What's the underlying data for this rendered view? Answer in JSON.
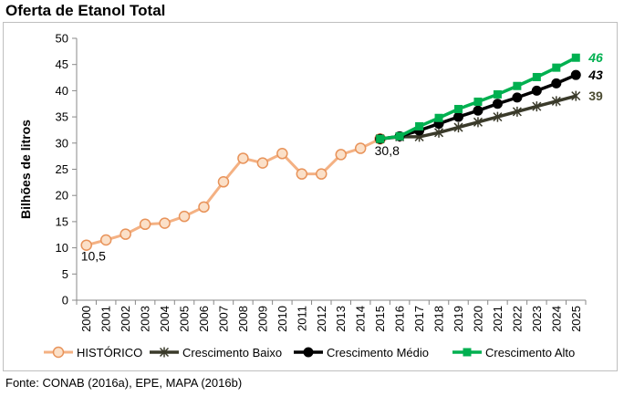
{
  "title": "Oferta de Etanol Total",
  "source": "Fonte: CONAB (2016a), EPE, MAPA (2016b)",
  "chart_data": {
    "type": "line",
    "ylabel": "Bilhões de litros",
    "xlabel": "",
    "ylim": [
      0,
      50
    ],
    "yticks": [
      0,
      5,
      10,
      15,
      20,
      25,
      30,
      35,
      40,
      45,
      50
    ],
    "grid": false,
    "legend_position": "bottom",
    "x": [
      "2000",
      "2001",
      "2002",
      "2003",
      "2004",
      "2005",
      "2006",
      "2007",
      "2008",
      "2009",
      "2010",
      "2011",
      "2012",
      "2013",
      "2014",
      "2015",
      "2016",
      "2017",
      "2018",
      "2019",
      "2020",
      "2021",
      "2022",
      "2023",
      "2024",
      "2025"
    ],
    "series": [
      {
        "name": "HISTÓRICO",
        "color": "#f4b183",
        "marker": "circle",
        "values": [
          10.5,
          11.5,
          12.6,
          14.5,
          14.7,
          16.0,
          17.8,
          22.6,
          27.1,
          26.2,
          28.0,
          24.1,
          24.1,
          27.8,
          29.0,
          30.8,
          null,
          null,
          null,
          null,
          null,
          null,
          null,
          null,
          null,
          null
        ]
      },
      {
        "name": "Crescimento Baixo",
        "color": "#3a3a2a",
        "marker": "star",
        "values": [
          null,
          null,
          null,
          null,
          null,
          null,
          null,
          null,
          null,
          null,
          null,
          null,
          null,
          null,
          null,
          30.8,
          31.2,
          31.2,
          32.0,
          33.0,
          34.0,
          35.0,
          36.0,
          37.0,
          38.0,
          39.0
        ]
      },
      {
        "name": "Crescimento Médio",
        "color": "#000000",
        "marker": "dot",
        "values": [
          null,
          null,
          null,
          null,
          null,
          null,
          null,
          null,
          null,
          null,
          null,
          null,
          null,
          null,
          null,
          30.8,
          31.3,
          32.4,
          33.7,
          35.0,
          36.2,
          37.5,
          38.7,
          40.0,
          41.4,
          43.0
        ]
      },
      {
        "name": "Crescimento Alto",
        "color": "#00b050",
        "marker": "square",
        "values": [
          null,
          null,
          null,
          null,
          null,
          null,
          null,
          null,
          null,
          null,
          null,
          null,
          null,
          null,
          null,
          30.8,
          31.3,
          33.2,
          34.8,
          36.5,
          37.9,
          39.3,
          40.9,
          42.6,
          44.4,
          46.3
        ]
      }
    ],
    "annotations": [
      {
        "text": "10,5",
        "x": "2000",
        "y": 10.5,
        "color": "#000000",
        "style": "normal"
      },
      {
        "text": "30,8",
        "x": "2015",
        "y": 30.8,
        "color": "#000000",
        "style": "normal"
      },
      {
        "text": "46",
        "x": "2025",
        "y": 46.3,
        "color": "#00b050",
        "style": "bold-italic"
      },
      {
        "text": "43",
        "x": "2025",
        "y": 43.0,
        "color": "#000000",
        "style": "bold-italic"
      },
      {
        "text": "39",
        "x": "2025",
        "y": 39.0,
        "color": "#4d4d33",
        "style": "bold"
      }
    ]
  }
}
